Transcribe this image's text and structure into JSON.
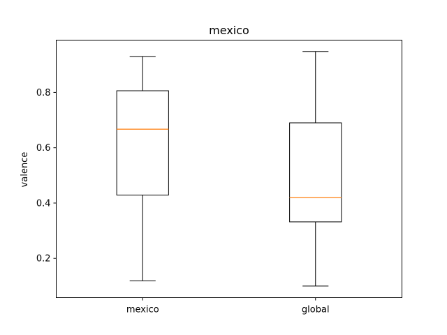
{
  "chart_data": {
    "type": "box",
    "title": "mexico",
    "xlabel": "",
    "ylabel": "valence",
    "categories": [
      "mexico",
      "global"
    ],
    "boxes": [
      {
        "label": "mexico",
        "whisker_low": 0.119,
        "q1": 0.429,
        "median": 0.667,
        "q3": 0.806,
        "whisker_high": 0.93
      },
      {
        "label": "global",
        "whisker_low": 0.1,
        "q1": 0.332,
        "median": 0.42,
        "q3": 0.69,
        "whisker_high": 0.948
      }
    ],
    "ylim": [
      0.058,
      0.989
    ],
    "yticks": [
      0.2,
      0.4,
      0.6,
      0.8
    ],
    "ytick_labels": [
      "0.2",
      "0.4",
      "0.6",
      "0.8"
    ],
    "grid": false,
    "colors": {
      "box": "#000000",
      "median": "#ff7f0e",
      "axes": "#000000"
    }
  }
}
